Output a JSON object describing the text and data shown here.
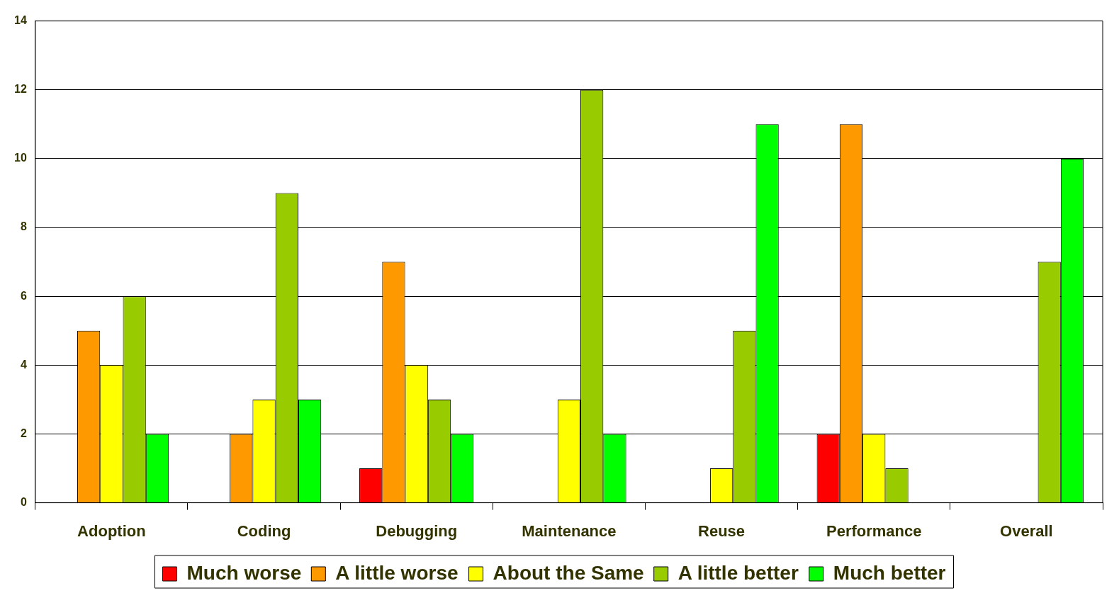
{
  "chart_data": {
    "type": "bar",
    "categories": [
      "Adoption",
      "Coding",
      "Debugging",
      "Maintenance",
      "Reuse",
      "Performance",
      "Overall"
    ],
    "series": [
      {
        "name": "Much worse",
        "color": "#ff0000",
        "values": [
          0,
          0,
          1,
          0,
          0,
          2,
          0
        ]
      },
      {
        "name": "A little worse",
        "color": "#ff9900",
        "values": [
          5,
          2,
          7,
          0,
          0,
          11,
          0
        ]
      },
      {
        "name": "About the Same",
        "color": "#ffff00",
        "values": [
          4,
          3,
          4,
          3,
          1,
          2,
          0
        ]
      },
      {
        "name": "A little better",
        "color": "#99cc00",
        "values": [
          6,
          9,
          3,
          12,
          5,
          1,
          7
        ]
      },
      {
        "name": "Much better",
        "color": "#00ff00",
        "values": [
          2,
          3,
          2,
          2,
          11,
          0,
          10
        ]
      }
    ],
    "ylim": [
      0,
      14
    ],
    "yticks": [
      0,
      2,
      4,
      6,
      8,
      10,
      12,
      14
    ],
    "grid": "y",
    "legend": "bottom"
  }
}
